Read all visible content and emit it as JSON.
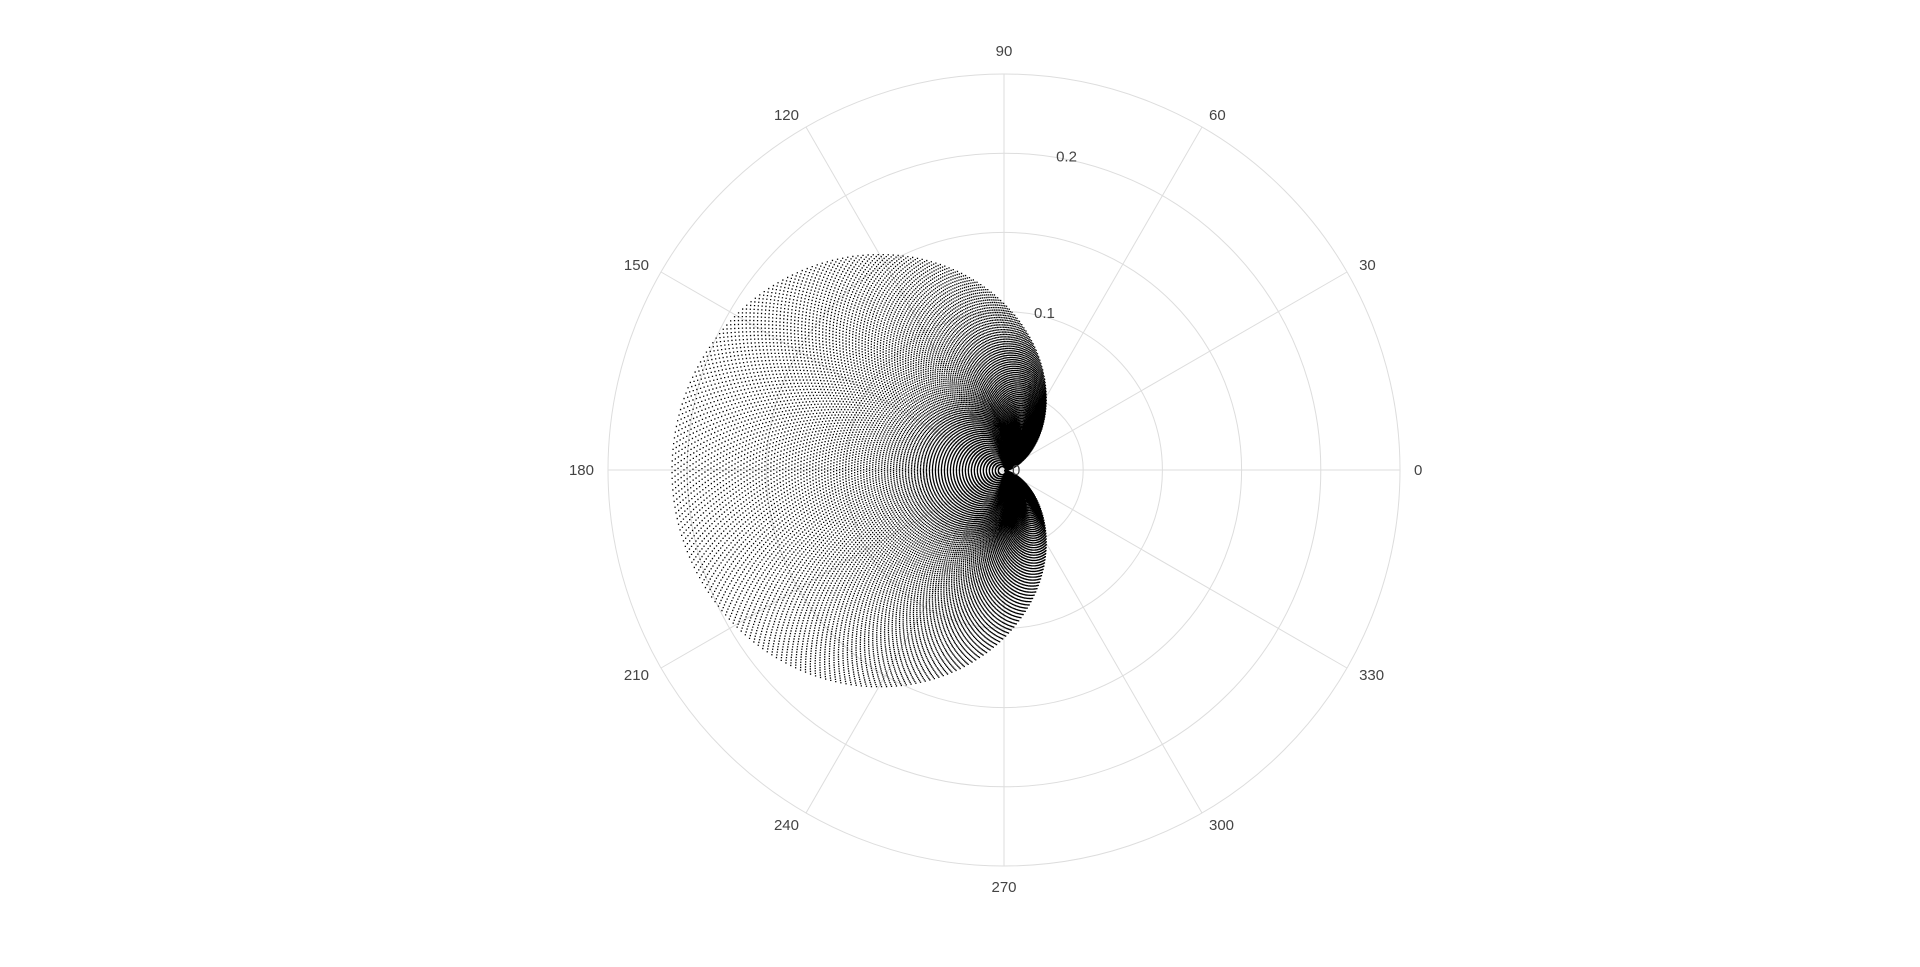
{
  "chart_data": {
    "type": "scatter",
    "coordinate_system": "polar",
    "angular_axis": {
      "unit": "degrees",
      "tick_labels": [
        "0",
        "30",
        "60",
        "90",
        "120",
        "150",
        "180",
        "210",
        "240",
        "270",
        "300",
        "330"
      ],
      "tick_values": [
        0,
        30,
        60,
        90,
        120,
        150,
        180,
        210,
        240,
        270,
        300,
        330
      ],
      "direction": "counterclockwise",
      "zero_position": "right"
    },
    "radial_axis": {
      "tick_labels": [
        "0",
        "0.1",
        "0.2"
      ],
      "tick_values": [
        0,
        0.1,
        0.2
      ],
      "range": [
        0,
        0.25
      ],
      "label_angle_deg": 82
    },
    "grid": true,
    "grid_color": "#dddddd",
    "marker_color": "#000000",
    "series": [
      {
        "description_of_family": "dense dotted cardioid-like curves r = a*(1 - cos(theta)) for a range of scales",
        "curve_family": "cardioid",
        "scale_range": [
          0.002,
          0.105
        ],
        "curve_count": 110,
        "points_per_curve": 360
      }
    ]
  }
}
